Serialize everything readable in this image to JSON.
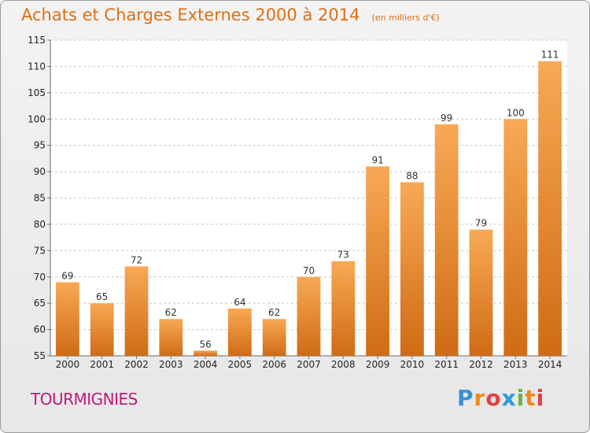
{
  "chart_title": "Achats et Charges Externes 2000 à 2014",
  "chart_subtitle": "(en milliers d'€)",
  "commune": "TOURMIGNIES",
  "brand": {
    "letters": [
      "P",
      "r",
      "o",
      "x",
      "i",
      "t",
      "i"
    ],
    "colors": [
      "#3a8fd6",
      "#f08a1c",
      "#e43f3f",
      "#2a9bd8",
      "#6cb33f",
      "#f08a1c",
      "#e43f3f"
    ]
  },
  "colors": {
    "bar_light": "#f8a955",
    "bar_dark": "#d06b15",
    "title": "#e06f12",
    "commune": "#c0197a"
  },
  "chart_data": {
    "type": "bar",
    "title": "Achats et Charges Externes 2000 à 2014",
    "subtitle": "(en milliers d'€)",
    "categories": [
      "2000",
      "2001",
      "2002",
      "2003",
      "2004",
      "2005",
      "2006",
      "2007",
      "2008",
      "2009",
      "2010",
      "2011",
      "2012",
      "2013",
      "2014"
    ],
    "values": [
      69,
      65,
      72,
      62,
      56,
      64,
      62,
      70,
      73,
      91,
      88,
      99,
      79,
      100,
      111
    ],
    "ylim": [
      55,
      115
    ],
    "yticks": [
      55,
      60,
      65,
      70,
      75,
      80,
      85,
      90,
      95,
      100,
      105,
      110,
      115
    ],
    "grid": "horizontal-dashed",
    "legend": "none"
  }
}
